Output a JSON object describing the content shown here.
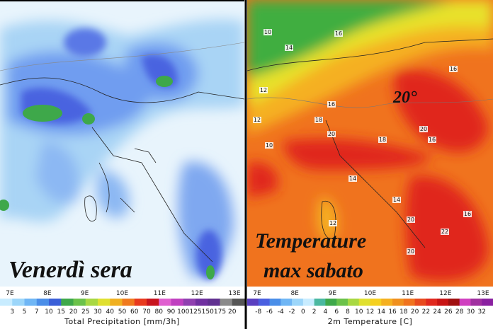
{
  "precipitation": {
    "caption": "Venerdì sera",
    "longitudes": [
      "7E",
      "8E",
      "9E",
      "10E",
      "11E",
      "12E",
      "13E"
    ],
    "scale": [
      "3",
      "5",
      "7",
      "10",
      "15",
      "20",
      "25",
      "30",
      "40",
      "50",
      "60",
      "70",
      "80",
      "90",
      "100",
      "125",
      "150",
      "175",
      "20"
    ],
    "legend_title": "Total Precipitation [mm/3h]"
  },
  "temperature": {
    "highlight": "20°",
    "caption_line1": "Temperature",
    "caption_line2": "max sabato",
    "longitudes": [
      "7E",
      "8E",
      "9E",
      "10E",
      "11E",
      "12E",
      "13E"
    ],
    "scale": [
      "-8",
      "-6",
      "-4",
      "-2",
      "0",
      "2",
      "4",
      "6",
      "8",
      "10",
      "12",
      "14",
      "16",
      "18",
      "20",
      "22",
      "24",
      "26",
      "28",
      "30",
      "32"
    ],
    "legend_title": "2m Temperature [C]",
    "map_labels": [
      "10",
      "14",
      "16",
      "12",
      "16",
      "18",
      "20",
      "18",
      "16",
      "12",
      "10",
      "16",
      "20",
      "14",
      "12",
      "20",
      "22",
      "20",
      "16",
      "14"
    ]
  }
}
